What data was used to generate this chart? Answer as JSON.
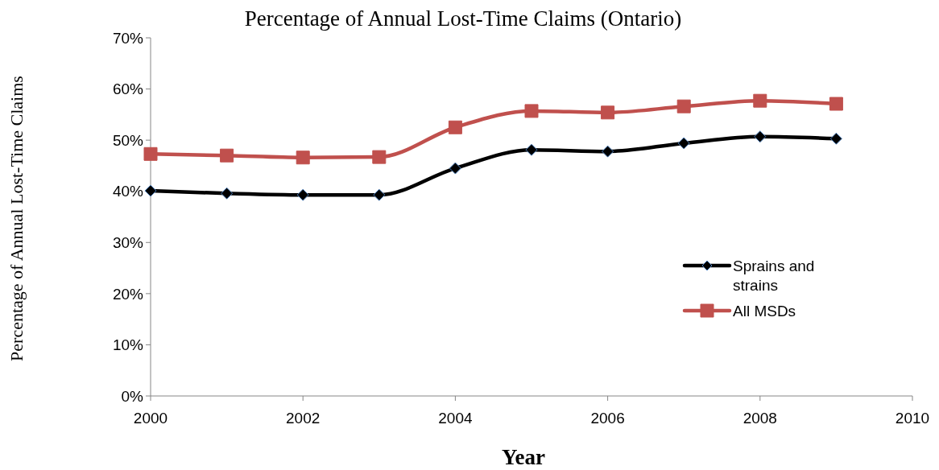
{
  "chart_data": {
    "type": "line",
    "title": "Percentage of Annual Lost-Time Claims (Ontario)",
    "xlabel": "Year",
    "ylabel": "Percentage of Annual Lost-Time Claims",
    "x": [
      2000,
      2001,
      2002,
      2003,
      2004,
      2005,
      2006,
      2007,
      2008,
      2009
    ],
    "series": [
      {
        "name": "Sprains and strains",
        "color": "#000000",
        "marker": "diamond",
        "values": [
          40.1,
          39.6,
          39.3,
          39.3,
          44.5,
          48.1,
          47.8,
          49.4,
          50.7,
          50.3
        ]
      },
      {
        "name": "All MSDs",
        "color": "#c0504d",
        "marker": "square",
        "values": [
          47.3,
          47.0,
          46.6,
          46.7,
          52.5,
          55.7,
          55.4,
          56.6,
          57.7,
          57.1
        ]
      }
    ],
    "xlim": [
      2000,
      2010
    ],
    "xticks": [
      2000,
      2002,
      2004,
      2006,
      2008,
      2010
    ],
    "ylim": [
      0,
      70
    ],
    "yticks": [
      {
        "value": 0,
        "label": "0%"
      },
      {
        "value": 10,
        "label": "10%"
      },
      {
        "value": 20,
        "label": "20%"
      },
      {
        "value": 30,
        "label": "30%"
      },
      {
        "value": 40,
        "label": "40%"
      },
      {
        "value": 50,
        "label": "50%"
      },
      {
        "value": 60,
        "label": "60%"
      },
      {
        "value": 70,
        "label": "70%"
      }
    ],
    "grid": false,
    "legend": "right"
  }
}
